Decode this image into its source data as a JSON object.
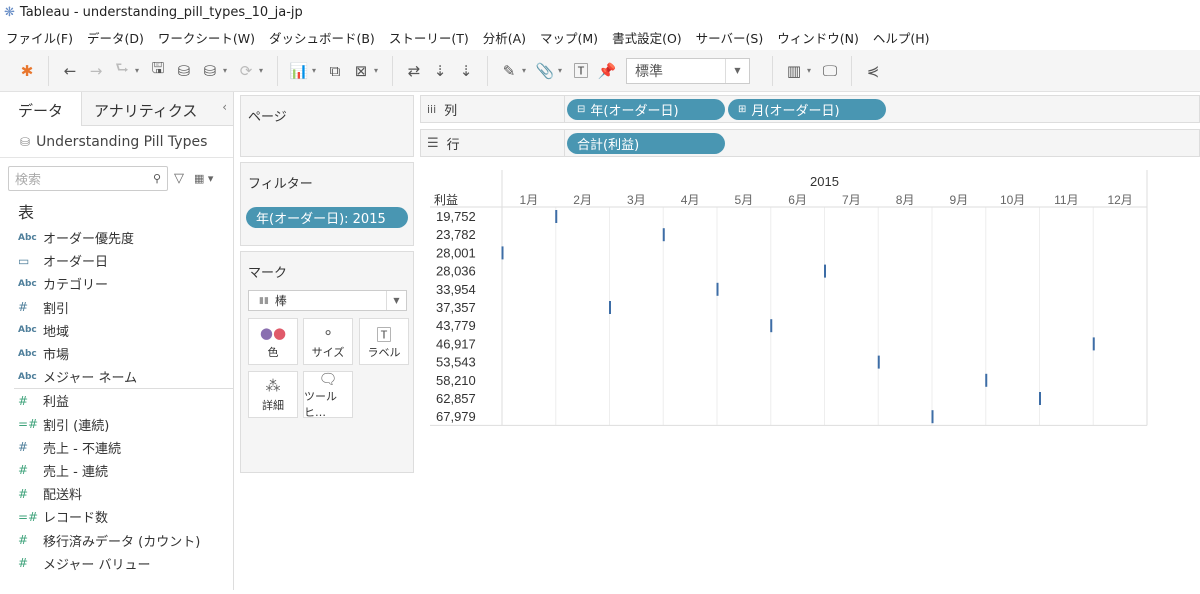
{
  "window": {
    "title": "Tableau - understanding_pill_types_10_ja-jp"
  },
  "menu": [
    "ファイル(F)",
    "データ(D)",
    "ワークシート(W)",
    "ダッシュボード(B)",
    "ストーリー(T)",
    "分析(A)",
    "マップ(M)",
    "書式設定(O)",
    "サーバー(S)",
    "ウィンドウ(N)",
    "ヘルプ(H)"
  ],
  "toolbar": {
    "fit_value": "標準"
  },
  "left_panel": {
    "tabs": [
      "データ",
      "アナリティクス"
    ],
    "datasource": "Understanding Pill Types",
    "search_placeholder": "検索",
    "section": "表",
    "dimensions": [
      {
        "type": "Abc",
        "name": "オーダー優先度"
      },
      {
        "type": "date",
        "name": "オーダー日"
      },
      {
        "type": "Abc",
        "name": "カテゴリー"
      },
      {
        "type": "#",
        "name": "割引"
      },
      {
        "type": "Abc",
        "name": "地域"
      },
      {
        "type": "Abc",
        "name": "市場"
      },
      {
        "type": "Abc",
        "name": "メジャー ネーム"
      }
    ],
    "measures": [
      {
        "type": "#",
        "name": "利益",
        "color": "green"
      },
      {
        "type": "=#",
        "name": "割引 (連続)",
        "color": "green"
      },
      {
        "type": "#",
        "name": "売上 - 不連続",
        "color": "blue"
      },
      {
        "type": "#",
        "name": "売上 - 連続",
        "color": "green"
      },
      {
        "type": "#",
        "name": "配送料",
        "color": "green"
      },
      {
        "type": "=#",
        "name": "レコード数",
        "color": "green"
      },
      {
        "type": "#",
        "name": "移行済みデータ (カウント)",
        "color": "green"
      },
      {
        "type": "#",
        "name": "メジャー バリュー",
        "color": "green"
      }
    ]
  },
  "pages": {
    "title": "ページ"
  },
  "filters": {
    "title": "フィルター",
    "pill": "年(オーダー日): 2015"
  },
  "marks": {
    "title": "マーク",
    "type": "棒",
    "buttons": [
      "色",
      "サイズ",
      "ラベル",
      "詳細",
      "ツールヒ…"
    ]
  },
  "shelves": {
    "columns": {
      "label": "列",
      "pills": [
        "年(オーダー日)",
        "月(オーダー日)"
      ]
    },
    "rows": {
      "label": "行",
      "pills": [
        "合計(利益)"
      ]
    }
  },
  "colors": {
    "pill": "#4996b2",
    "mark": "#3d6da6"
  },
  "chart_data": {
    "type": "bar",
    "title": "",
    "column_header": "2015",
    "row_header": "利益",
    "categories": [
      "1月",
      "2月",
      "3月",
      "4月",
      "5月",
      "6月",
      "7月",
      "8月",
      "9月",
      "10月",
      "11月",
      "12月"
    ],
    "rows": [
      "19,752",
      "23,782",
      "28,001",
      "28,036",
      "33,954",
      "37,357",
      "43,779",
      "46,917",
      "53,543",
      "58,210",
      "62,857",
      "67,979"
    ],
    "marks": [
      {
        "row": "19,752",
        "month": "2月"
      },
      {
        "row": "23,782",
        "month": "4月"
      },
      {
        "row": "28,001",
        "month": "1月"
      },
      {
        "row": "28,036",
        "month": "7月"
      },
      {
        "row": "33,954",
        "month": "5月"
      },
      {
        "row": "37,357",
        "month": "3月"
      },
      {
        "row": "43,779",
        "month": "6月"
      },
      {
        "row": "46,917",
        "month": "12月"
      },
      {
        "row": "53,543",
        "month": "8月"
      },
      {
        "row": "58,210",
        "month": "10月"
      },
      {
        "row": "62,857",
        "month": "11月"
      },
      {
        "row": "67,979",
        "month": "9月"
      }
    ]
  }
}
